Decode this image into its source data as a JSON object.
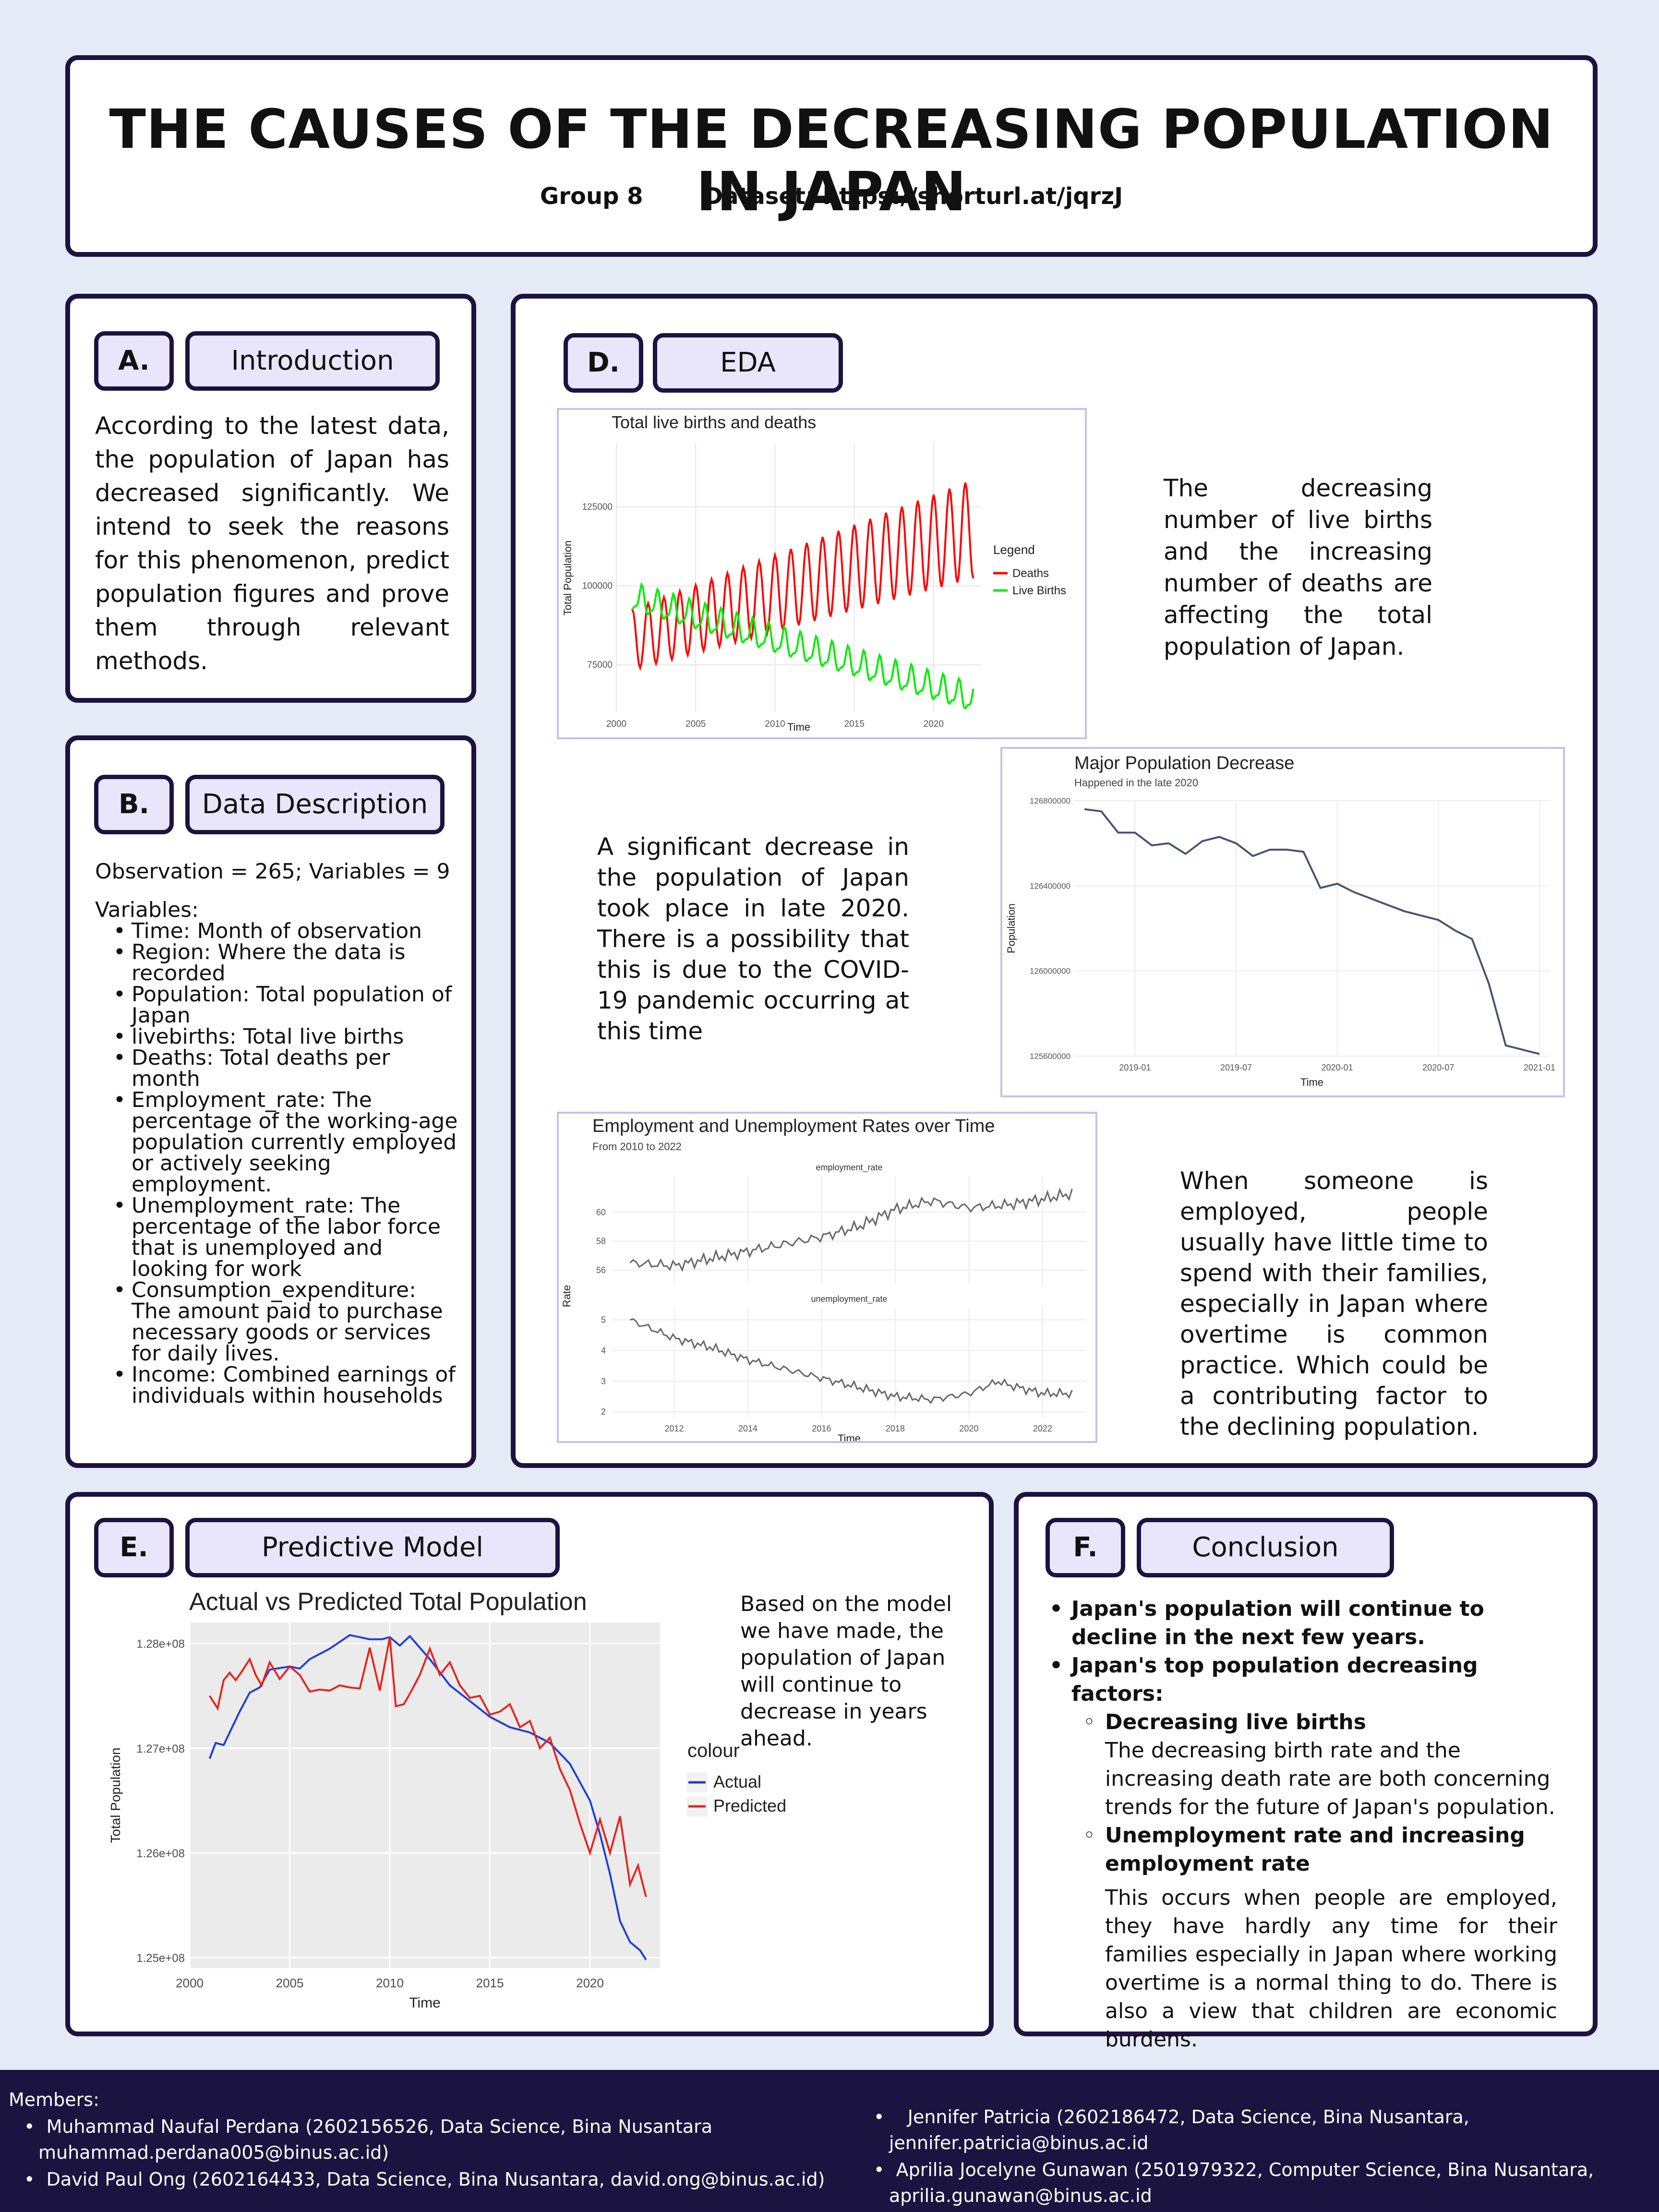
{
  "header": {
    "title": "THE CAUSES OF THE DECREASING POPULATION IN JAPAN",
    "group": "Group 8",
    "dataset": "Dataset: https://shorturl.at/jqrzJ"
  },
  "intro": {
    "letter": "A.",
    "label": "Introduction",
    "text": "According to the latest data, the population of Japan has decreased significantly. We intend to seek the reasons for this phenomenon, predict population figures and prove them through relevant methods."
  },
  "data_desc": {
    "letter": "B.",
    "label": "Data Description",
    "summary": "Observation = 265; Variables = 9",
    "vars_title": "Variables:",
    "items": [
      "Time: Month of observation",
      "Region: Where the data is recorded",
      "Population: Total population of Japan",
      "livebirths: Total live births",
      "Deaths: Total deaths per month",
      "Employment_rate: The percentage of the working-age population currently employed or actively seeking employment.",
      "Unemployment_rate: The percentage of the labor force that is unemployed and looking for work",
      "Consumption_expenditure: The amount paid to purchase necessary goods or services for daily lives.",
      "Income: Combined earnings of individuals within households"
    ]
  },
  "eda": {
    "letter": "D.",
    "label": "EDA",
    "text1": "The decreasing number of live births and the increasing number of deaths are affecting the total population of Japan.",
    "text2": "A significant decrease in the population of Japan took place in late 2020. There is a possibility that this is due to the COVID-19 pandemic occurring at this time",
    "text3": "When someone is employed, people usually have little time to spend with their families, especially in Japan where overtime is common practice. Which could be a contributing factor to the declining population."
  },
  "predictive": {
    "letter": "E.",
    "label": "Predictive Model",
    "text": "Based on the model we have made, the population of Japan will continue to decrease in years ahead."
  },
  "conclusion": {
    "letter": "F.",
    "label": "Conclusion",
    "point1": "Japan's population will continue to decline in the next few years.",
    "point2": "Japan's top population decreasing factors:",
    "sub1_title": "Decreasing live births",
    "sub1_text": "The decreasing birth rate and the increasing death rate are both concerning trends for the future of Japan's population.",
    "sub2_title": "Unemployment rate and increasing employment rate",
    "sub2_text": "This occurs when people are employed, they have hardly any time for their families especially in  Japan where working overtime is a normal thing to do. There is also a view that children are economic burdens."
  },
  "members": {
    "title": "Members:",
    "m1a": "Muhammad Naufal Perdana (2602156526, Data Science, Bina Nusantara",
    "m1b": "muhammad.perdana005@binus.ac.id)",
    "m2": "David Paul Ong (2602164433, Data Science, Bina Nusantara, david.ong@binus.ac.id)",
    "m3a": "Jennifer Patricia (2602186472, Data Science, Bina Nusantara,",
    "m3b": "jennifer.patricia@binus.ac.id",
    "m4a": "Aprilia Jocelyne Gunawan (2501979322, Computer Science, Bina Nusantara,",
    "m4b": "aprilia.gunawan@binus.ac.id"
  },
  "chart_data": [
    {
      "type": "line",
      "title": "Total live births and deaths",
      "xlabel": "Time",
      "ylabel": "Total Population",
      "xlim": [
        2000,
        2023
      ],
      "ylim": [
        60000,
        145000
      ],
      "x_ticks": [
        2000,
        2005,
        2010,
        2015,
        2020
      ],
      "y_ticks": [
        75000,
        100000,
        125000
      ],
      "legend_title": "Legend",
      "legend_position": "right",
      "series": [
        {
          "name": "Deaths",
          "color": "#ff0000",
          "start": 2001,
          "trend_start": 83000,
          "trend_end": 118000,
          "seasonal_amplitude": 12000
        },
        {
          "name": "Live Births",
          "color": "#00ee00",
          "start": 2001,
          "trend_start": 96000,
          "trend_end": 64000,
          "seasonal_amplitude": 5000
        }
      ]
    },
    {
      "type": "line",
      "title": "Major Population Decrease",
      "subtitle": "Happened in the late 2020",
      "xlabel": "Time",
      "ylabel": "Population",
      "ylim": [
        125600000,
        126800000
      ],
      "x_ticks": [
        "2019-01",
        "2019-07",
        "2020-01",
        "2020-07",
        "2021-01"
      ],
      "y_ticks": [
        125600000,
        126000000,
        126400000,
        126800000
      ],
      "color": "#475372",
      "x": [
        "2018-10",
        "2018-11",
        "2018-12",
        "2019-01",
        "2019-02",
        "2019-03",
        "2019-04",
        "2019-05",
        "2019-06",
        "2019-07",
        "2019-08",
        "2019-09",
        "2019-10",
        "2019-11",
        "2019-12",
        "2020-01",
        "2020-02",
        "2020-03",
        "2020-04",
        "2020-05",
        "2020-06",
        "2020-07",
        "2020-08",
        "2020-09",
        "2020-10",
        "2020-11",
        "2020-12",
        "2021-01"
      ],
      "values": [
        126760000,
        126750000,
        126650000,
        126650000,
        126590000,
        126600000,
        126550000,
        126610000,
        126630000,
        126600000,
        126540000,
        126570000,
        126570000,
        126560000,
        126390000,
        126410000,
        126370000,
        126340000,
        126310000,
        126280000,
        126260000,
        126240000,
        126190000,
        126150000,
        125940000,
        125650000,
        125630000,
        125610000
      ]
    },
    {
      "type": "line",
      "title": "Employment and Unemployment Rates over Time",
      "subtitle": "From 2010 to 2022",
      "xlabel": "Time",
      "ylabel": "Rate",
      "x_ticks": [
        2012,
        2014,
        2016,
        2018,
        2020,
        2022
      ],
      "xlim": [
        2010.3,
        2023.2
      ],
      "panels": [
        {
          "name": "employment_rate",
          "ylim": [
            55,
            62.5
          ],
          "y_ticks": [
            56,
            58,
            60
          ],
          "start": 2010.8,
          "end": 2022.8,
          "values_by_year": [
            [
              2010.8,
              56.5
            ],
            [
              2012,
              56.3
            ],
            [
              2013,
              56.8
            ],
            [
              2014,
              57.3
            ],
            [
              2015,
              57.8
            ],
            [
              2016,
              58.3
            ],
            [
              2017,
              59.0
            ],
            [
              2018,
              60.2
            ],
            [
              2019,
              60.8
            ],
            [
              2020,
              60.3
            ],
            [
              2021,
              60.5
            ],
            [
              2022,
              60.9
            ],
            [
              2022.8,
              61.3
            ]
          ]
        },
        {
          "name": "unemployment_rate",
          "ylim": [
            1.8,
            5.4
          ],
          "y_ticks": [
            2,
            3,
            4,
            5
          ],
          "start": 2010.8,
          "end": 2022.8,
          "values_by_year": [
            [
              2010.8,
              5.0
            ],
            [
              2012,
              4.4
            ],
            [
              2013,
              4.1
            ],
            [
              2014,
              3.7
            ],
            [
              2015,
              3.4
            ],
            [
              2016,
              3.1
            ],
            [
              2017,
              2.8
            ],
            [
              2018,
              2.5
            ],
            [
              2019,
              2.4
            ],
            [
              2020,
              2.6
            ],
            [
              2020.8,
              3.0
            ],
            [
              2021,
              2.9
            ],
            [
              2022,
              2.6
            ],
            [
              2022.8,
              2.6
            ]
          ]
        }
      ]
    },
    {
      "type": "line",
      "title": "Actual vs Predicted Total Population",
      "xlabel": "Time",
      "ylabel": "Total Population",
      "xlim": [
        2000,
        2023.5
      ],
      "ylim": [
        124900000,
        128200000
      ],
      "x_ticks": [
        2000,
        2005,
        2010,
        2015,
        2020
      ],
      "y_ticks": [
        125000000,
        126000000,
        127000000,
        128000000
      ],
      "y_tick_labels": [
        "1.25e+08",
        "1.26e+08",
        "1.27e+08",
        "1.28e+08"
      ],
      "legend_title": "colour",
      "legend_position": "right",
      "series": [
        {
          "name": "Actual",
          "color": "#1f3fd8",
          "x": [
            2001,
            2001.3,
            2001.7,
            2002,
            2002.5,
            2003,
            2003.5,
            2004,
            2005,
            2005.5,
            2006,
            2007,
            2008,
            2009,
            2009.6,
            2010,
            2010.5,
            2011,
            2012,
            2013,
            2014,
            2015,
            2016,
            2017,
            2018,
            2019,
            2020,
            2020.5,
            2021,
            2021.5,
            2022,
            2022.5,
            2022.8
          ],
          "values": [
            126900000,
            127050000,
            127030000,
            127150000,
            127350000,
            127530000,
            127580000,
            127750000,
            127780000,
            127760000,
            127850000,
            127950000,
            128080000,
            128040000,
            128040000,
            128060000,
            127980000,
            128070000,
            127850000,
            127600000,
            127450000,
            127300000,
            127200000,
            127150000,
            127050000,
            126850000,
            126500000,
            126180000,
            125800000,
            125350000,
            125150000,
            125070000,
            124980000
          ]
        },
        {
          "name": "Predicted",
          "color": "#e8251f",
          "x": [
            2001,
            2001.4,
            2001.7,
            2002,
            2002.3,
            2002.6,
            2003,
            2003.3,
            2003.6,
            2004,
            2004.5,
            2005,
            2005.5,
            2006,
            2006.5,
            2007,
            2007.5,
            2008,
            2008.5,
            2009,
            2009.5,
            2010,
            2010.3,
            2010.7,
            2011,
            2011.5,
            2012,
            2012.5,
            2013,
            2013.5,
            2014,
            2014.5,
            2015,
            2015.5,
            2016,
            2016.5,
            2017,
            2017.5,
            2018,
            2018.5,
            2019,
            2019.5,
            2020,
            2020.5,
            2021,
            2021.5,
            2022,
            2022.4,
            2022.8
          ],
          "values": [
            127500000,
            127380000,
            127650000,
            127720000,
            127650000,
            127730000,
            127850000,
            127700000,
            127600000,
            127820000,
            127660000,
            127780000,
            127700000,
            127540000,
            127560000,
            127550000,
            127600000,
            127580000,
            127570000,
            127960000,
            127550000,
            128060000,
            127400000,
            127420000,
            127520000,
            127700000,
            127950000,
            127700000,
            127820000,
            127600000,
            127480000,
            127500000,
            127320000,
            127350000,
            127420000,
            127200000,
            127260000,
            127000000,
            127100000,
            126800000,
            126600000,
            126280000,
            126000000,
            126320000,
            126000000,
            126350000,
            125700000,
            125880000,
            125580000
          ]
        }
      ]
    }
  ]
}
